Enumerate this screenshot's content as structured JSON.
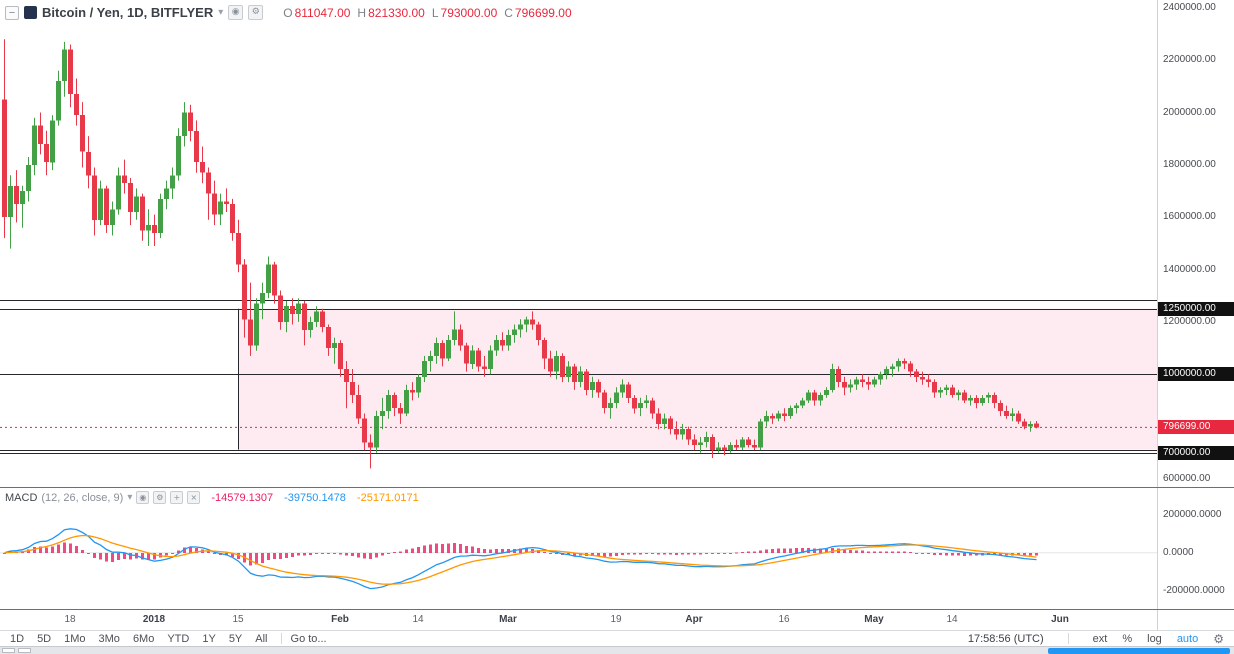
{
  "colors": {
    "up": "#43a047",
    "down": "#e8394a",
    "red": "#e8283e",
    "black_badge": "#111111",
    "box_fill": "rgba(233,30,99,0.09)",
    "hline": "#26282d",
    "macd_hist": "#e91e63",
    "macd_line": "#2196f3",
    "signal_line": "#ff9800",
    "accent_blue": "#2196f3"
  },
  "icons": {
    "caret": "▾",
    "eye": "◉",
    "gear": "⚙",
    "plus": "+",
    "close": "×",
    "collapse": "−"
  },
  "legend": {
    "symbol_title": "Bitcoin / Yen, 1D, BITFLYER",
    "ohlc": {
      "o_label": "O",
      "o": "811047.00",
      "h_label": "H",
      "h": "821330.00",
      "l_label": "L",
      "l": "793000.00",
      "c_label": "C",
      "c": "796699.00"
    }
  },
  "macd_legend": {
    "title": "MACD",
    "params": "(12, 26, close, 9)",
    "hist_value": "-14579.1307",
    "macd_value": "-39750.1478",
    "signal_value": "-25171.0171"
  },
  "price_axis": {
    "ticks": [
      {
        "label": "2400000.00",
        "price": 2400000
      },
      {
        "label": "2200000.00",
        "price": 2200000
      },
      {
        "label": "2000000.00",
        "price": 2000000
      },
      {
        "label": "1800000.00",
        "price": 1800000
      },
      {
        "label": "1600000.00",
        "price": 1600000
      },
      {
        "label": "1400000.00",
        "price": 1400000
      },
      {
        "label": "1200000.00",
        "price": 1200000
      },
      {
        "label": "1000000.00",
        "price": 1000000
      },
      {
        "label": "800000.00",
        "price": 800000
      },
      {
        "label": "600000.00",
        "price": 600000
      }
    ],
    "badges": [
      {
        "label": "1250000.00",
        "price": 1250000,
        "type": "black"
      },
      {
        "label": "1000000.00",
        "price": 1000000,
        "type": "black"
      },
      {
        "label": "700000.00",
        "price": 700000,
        "type": "black"
      },
      {
        "label": "796699.00",
        "price": 796699,
        "type": "red"
      }
    ]
  },
  "macd_axis": {
    "ticks": [
      {
        "label": "200000.0000",
        "value": 200000
      },
      {
        "label": "0.0000",
        "value": 0
      },
      {
        "label": "-200000.0000",
        "value": -200000
      }
    ]
  },
  "toolbar": {
    "ranges": [
      "1D",
      "5D",
      "1Mo",
      "3Mo",
      "6Mo",
      "YTD",
      "1Y",
      "5Y",
      "All"
    ],
    "goto": "Go to...",
    "clock": "17:58:56 (UTC)",
    "ext": "ext",
    "percent": "%",
    "log": "log",
    "auto": "auto"
  },
  "chart_data": {
    "type": "candlestick",
    "symbol": "Bitcoin / Yen",
    "interval": "1D",
    "exchange": "BITFLYER",
    "last_ohlc": {
      "open": 811047,
      "high": 821330,
      "low": 793000,
      "close": 796699
    },
    "unit": 10000,
    "start_date": "2017-12-07",
    "price_ylim": [
      569000,
      2430000
    ],
    "current_price": 796699,
    "hlines": [
      1285000,
      1250000,
      1000000,
      712000,
      700000
    ],
    "box": {
      "top": 1250000,
      "bottom": 712000,
      "start_index": 39
    },
    "x0": 4,
    "dx": 6,
    "candles": [
      [
        205,
        228,
        152,
        160
      ],
      [
        160,
        176,
        148,
        172
      ],
      [
        172,
        178,
        158,
        165
      ],
      [
        165,
        172,
        156,
        170
      ],
      [
        170,
        183,
        166,
        180
      ],
      [
        180,
        198,
        176,
        195
      ],
      [
        195,
        200,
        184,
        188
      ],
      [
        188,
        193,
        176,
        181
      ],
      [
        181,
        199,
        178,
        197
      ],
      [
        197,
        216,
        195,
        212
      ],
      [
        212,
        227,
        206,
        224
      ],
      [
        224,
        226,
        202,
        207
      ],
      [
        207,
        213,
        195,
        199
      ],
      [
        199,
        204,
        179,
        185
      ],
      [
        185,
        191,
        171,
        176
      ],
      [
        176,
        179,
        153,
        159
      ],
      [
        159,
        174,
        157,
        171
      ],
      [
        171,
        172,
        154,
        157
      ],
      [
        157,
        166,
        153,
        163
      ],
      [
        163,
        179,
        161,
        176
      ],
      [
        176,
        182,
        169,
        173
      ],
      [
        173,
        175,
        157,
        162
      ],
      [
        162,
        171,
        159,
        168
      ],
      [
        168,
        169,
        151,
        155
      ],
      [
        155,
        163,
        149,
        157
      ],
      [
        157,
        161,
        149,
        154
      ],
      [
        154,
        169,
        152,
        167
      ],
      [
        167,
        174,
        163,
        171
      ],
      [
        171,
        179,
        167,
        176
      ],
      [
        176,
        194,
        174,
        191
      ],
      [
        191,
        204,
        187,
        200
      ],
      [
        200,
        203,
        189,
        193
      ],
      [
        193,
        197,
        177,
        181
      ],
      [
        181,
        187,
        173,
        177
      ],
      [
        177,
        179,
        159,
        169
      ],
      [
        169,
        174,
        157,
        161
      ],
      [
        161,
        169,
        157,
        166
      ],
      [
        166,
        171,
        162,
        165
      ],
      [
        165,
        167,
        151,
        154
      ],
      [
        154,
        159,
        139,
        142
      ],
      [
        142,
        144,
        114,
        121
      ],
      [
        121,
        135,
        107,
        111
      ],
      [
        111,
        129,
        109,
        127
      ],
      [
        127,
        135,
        121,
        131
      ],
      [
        131,
        145,
        129,
        142
      ],
      [
        142,
        143,
        127,
        130
      ],
      [
        130,
        132,
        117,
        120
      ],
      [
        120,
        128,
        116,
        126
      ],
      [
        126,
        129,
        119,
        123
      ],
      [
        123,
        129,
        120,
        127
      ],
      [
        127,
        128,
        111,
        117
      ],
      [
        117,
        122,
        114,
        120
      ],
      [
        120,
        126,
        118,
        124
      ],
      [
        124,
        125,
        116,
        118
      ],
      [
        118,
        119,
        107,
        110
      ],
      [
        110,
        114,
        104,
        112
      ],
      [
        112,
        113,
        99,
        102
      ],
      [
        102,
        105,
        87,
        97
      ],
      [
        97,
        102,
        89,
        92
      ],
      [
        92,
        96,
        81,
        83
      ],
      [
        83,
        85,
        71,
        74
      ],
      [
        74,
        77,
        64,
        72
      ],
      [
        72,
        86,
        70,
        84
      ],
      [
        84,
        91,
        79,
        86
      ],
      [
        86,
        94,
        83,
        92
      ],
      [
        92,
        93,
        84,
        87
      ],
      [
        87,
        89,
        81,
        85
      ],
      [
        85,
        96,
        84,
        94
      ],
      [
        94,
        97,
        90,
        93
      ],
      [
        93,
        100,
        91,
        99
      ],
      [
        99,
        107,
        97,
        105
      ],
      [
        105,
        109,
        101,
        107
      ],
      [
        107,
        114,
        104,
        112
      ],
      [
        112,
        113,
        103,
        106
      ],
      [
        106,
        115,
        105,
        113
      ],
      [
        113,
        124,
        111,
        117
      ],
      [
        117,
        119,
        109,
        111
      ],
      [
        111,
        112,
        101,
        104
      ],
      [
        104,
        111,
        102,
        109
      ],
      [
        109,
        110,
        101,
        103
      ],
      [
        103,
        107,
        99,
        102
      ],
      [
        102,
        111,
        100,
        109
      ],
      [
        109,
        115,
        107,
        113
      ],
      [
        113,
        116,
        109,
        111
      ],
      [
        111,
        117,
        109,
        115
      ],
      [
        115,
        119,
        112,
        117
      ],
      [
        117,
        121,
        114,
        119
      ],
      [
        119,
        122,
        116,
        121
      ],
      [
        121,
        124,
        117,
        119
      ],
      [
        119,
        120,
        111,
        113
      ],
      [
        113,
        114,
        102,
        106
      ],
      [
        106,
        109,
        99,
        101
      ],
      [
        101,
        109,
        98,
        107
      ],
      [
        107,
        108,
        97,
        99
      ],
      [
        99,
        105,
        97,
        103
      ],
      [
        103,
        104,
        94,
        97
      ],
      [
        97,
        103,
        95,
        101
      ],
      [
        101,
        102,
        92,
        94
      ],
      [
        94,
        99,
        91,
        97
      ],
      [
        97,
        98,
        91,
        93
      ],
      [
        93,
        94,
        85,
        87
      ],
      [
        87,
        91,
        83,
        89
      ],
      [
        89,
        95,
        87,
        93
      ],
      [
        93,
        98,
        91,
        96
      ],
      [
        96,
        97,
        89,
        91
      ],
      [
        91,
        92,
        85,
        87
      ],
      [
        87,
        91,
        84,
        89
      ],
      [
        89,
        92,
        87,
        90
      ],
      [
        90,
        91,
        83,
        85
      ],
      [
        85,
        87,
        79,
        81
      ],
      [
        81,
        85,
        79,
        83
      ],
      [
        83,
        84,
        77,
        79
      ],
      [
        79,
        82,
        75,
        77
      ],
      [
        77,
        81,
        75,
        79
      ],
      [
        79,
        80,
        73,
        75
      ],
      [
        75,
        77,
        71,
        73
      ],
      [
        73,
        76,
        70,
        74
      ],
      [
        74,
        78,
        72,
        76
      ],
      [
        76,
        77,
        68,
        71
      ],
      [
        71,
        74,
        70,
        72
      ],
      [
        72,
        73,
        69,
        71
      ],
      [
        71,
        74,
        70,
        73
      ],
      [
        73,
        75,
        71,
        72
      ],
      [
        72,
        76,
        71,
        75
      ],
      [
        75,
        76,
        72,
        73
      ],
      [
        73,
        75,
        71,
        72
      ],
      [
        72,
        83,
        71,
        82
      ],
      [
        82,
        86,
        80,
        84
      ],
      [
        84,
        85,
        81,
        83
      ],
      [
        83,
        86,
        82,
        85
      ],
      [
        85,
        87,
        82,
        84
      ],
      [
        84,
        88,
        83,
        87
      ],
      [
        87,
        89,
        85,
        88
      ],
      [
        88,
        91,
        87,
        90
      ],
      [
        90,
        94,
        89,
        93
      ],
      [
        93,
        94,
        88,
        90
      ],
      [
        90,
        93,
        88,
        92
      ],
      [
        92,
        95,
        91,
        94
      ],
      [
        94,
        104,
        93,
        102
      ],
      [
        102,
        103,
        95,
        97
      ],
      [
        97,
        99,
        92,
        95
      ],
      [
        95,
        98,
        93,
        96
      ],
      [
        96,
        99,
        94,
        98
      ],
      [
        98,
        100,
        95,
        97
      ],
      [
        97,
        99,
        94,
        96
      ],
      [
        96,
        99,
        95,
        98
      ],
      [
        98,
        101,
        96,
        100
      ],
      [
        100,
        103,
        98,
        102
      ],
      [
        102,
        104,
        99,
        103
      ],
      [
        103,
        106,
        101,
        105
      ],
      [
        105,
        106,
        102,
        104
      ],
      [
        104,
        105,
        99,
        101
      ],
      [
        101,
        102,
        97,
        99
      ],
      [
        99,
        101,
        96,
        98
      ],
      [
        98,
        100,
        95,
        97
      ],
      [
        97,
        98,
        91,
        93
      ],
      [
        93,
        95,
        91,
        94
      ],
      [
        94,
        96,
        92,
        95
      ],
      [
        95,
        96,
        91,
        92
      ],
      [
        92,
        94,
        90,
        93
      ],
      [
        93,
        94,
        89,
        90
      ],
      [
        90,
        92,
        88,
        91
      ],
      [
        91,
        92,
        87,
        89
      ],
      [
        89,
        92,
        88,
        91
      ],
      [
        91,
        93,
        89,
        92
      ],
      [
        92,
        93,
        87,
        89
      ],
      [
        89,
        90,
        84,
        86
      ],
      [
        86,
        88,
        83,
        84
      ],
      [
        84,
        87,
        82,
        85
      ],
      [
        85,
        86,
        81,
        82
      ],
      [
        82,
        83,
        79,
        80
      ],
      [
        80,
        82,
        78,
        81
      ],
      [
        81.1047,
        82.133,
        79.3,
        79.6699
      ]
    ],
    "macd": {
      "params": [
        12,
        26,
        9
      ],
      "ylim": [
        -297000,
        343000
      ],
      "last": {
        "hist": -14579.1307,
        "macd": -39750.1478,
        "signal": -25171.0171
      }
    },
    "time_ticks": [
      {
        "label": "18",
        "index": 11
      },
      {
        "label": "2018",
        "index": 25,
        "bold": true
      },
      {
        "label": "15",
        "index": 39
      },
      {
        "label": "Feb",
        "index": 56,
        "bold": true
      },
      {
        "label": "14",
        "index": 69
      },
      {
        "label": "Mar",
        "index": 84,
        "bold": true
      },
      {
        "label": "19",
        "index": 102
      },
      {
        "label": "Apr",
        "index": 115,
        "bold": true
      },
      {
        "label": "16",
        "index": 130
      },
      {
        "label": "May",
        "index": 145,
        "bold": true
      },
      {
        "label": "14",
        "index": 158
      },
      {
        "label": "Jun",
        "index": 176,
        "bold": true
      }
    ]
  }
}
